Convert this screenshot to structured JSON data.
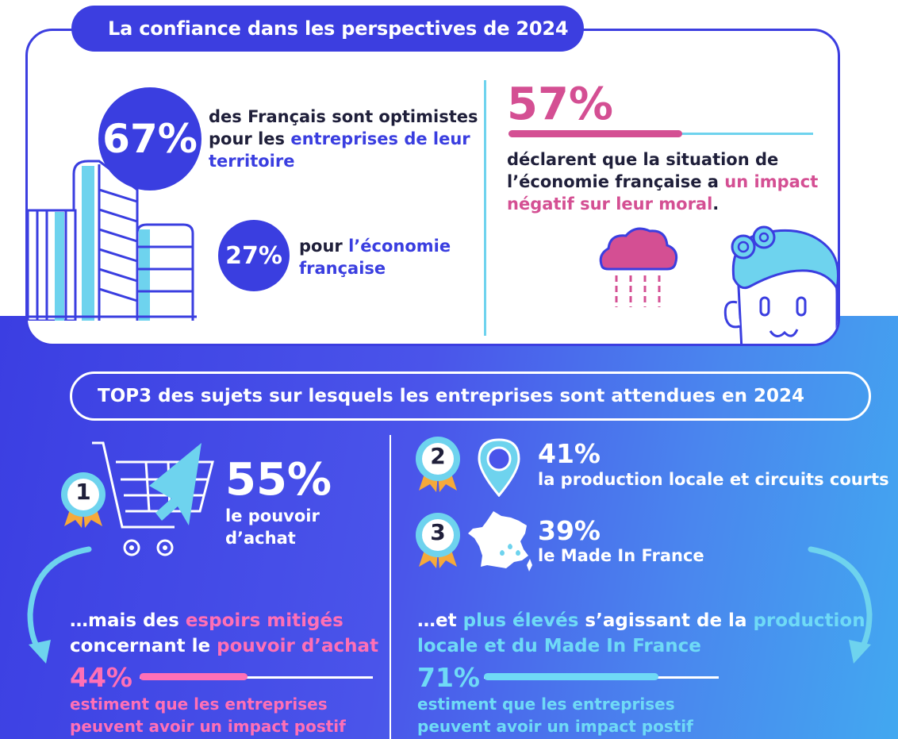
{
  "section1": {
    "title": "La confiance dans les perspectives de 2024",
    "stat67": {
      "value": "67%",
      "line1": "des Français sont optimistes",
      "line2_pre": "pour les ",
      "line2_highlight": "entreprises de leur",
      "line3_highlight": "territoire"
    },
    "stat27": {
      "value": "27%",
      "line1_pre": "pour ",
      "line1_highlight": "l’économie",
      "line2_highlight": "française"
    },
    "stat57": {
      "value": "57%",
      "bar_fraction": 0.57,
      "line1": "déclarent que la situation de",
      "line2_pre": "l’économie française a ",
      "line2_highlight": "un impact",
      "line3_highlight": "négatif sur leur moral",
      "line3_post": "."
    }
  },
  "section2": {
    "title": "TOP3 des sujets sur lesquels les entreprises sont attendues en 2024",
    "rank1": {
      "badge": "1",
      "value": "55%",
      "line1": "le pouvoir",
      "line2": "d’achat"
    },
    "rank2": {
      "badge": "2",
      "value": "41%",
      "label": "la production locale et circuits courts"
    },
    "rank3": {
      "badge": "3",
      "value": "39%",
      "label": "le Made In France"
    },
    "left_note": {
      "line1_pre": "…mais des ",
      "line1_highlight": "espoirs mitigés",
      "line2_pre": "concernant le ",
      "line2_highlight": "pouvoir d’achat",
      "value": "44%",
      "bar_fraction": 0.44,
      "desc1": "estiment que les entreprises",
      "desc2": "peuvent avoir un impact postif"
    },
    "right_note": {
      "line1_pre": "…et ",
      "line1_highlight": "plus élevés",
      "line1_mid": " s’agissant de la ",
      "line1_highlight2": "production",
      "line2_highlight": "locale et du Made In France",
      "value": "71%",
      "bar_fraction": 0.71,
      "desc1": "estiment que les entreprises",
      "desc2": "peuvent avoir un impact postif"
    }
  },
  "colors": {
    "primary_blue": "#3a3ee0",
    "pink": "#d44f93",
    "light_pink": "#ff70b6",
    "cyan": "#6fdaf6"
  }
}
